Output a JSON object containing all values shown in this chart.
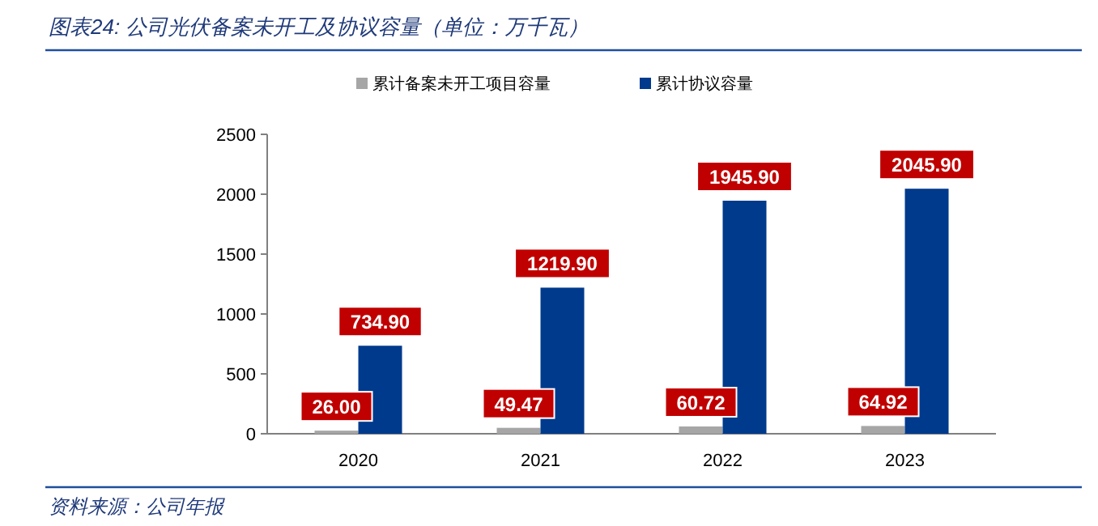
{
  "chart_data": {
    "type": "bar",
    "title": "图表24: 公司光伏备案未开工及协议容量（单位：万千瓦）",
    "categories": [
      "2020",
      "2021",
      "2022",
      "2023"
    ],
    "series": [
      {
        "name": "累计备案未开工项目容量",
        "color": "#a6a6a6",
        "values": [
          26.0,
          49.47,
          60.72,
          64.92
        ],
        "value_labels": [
          "26.00",
          "49.47",
          "60.72",
          "64.92"
        ]
      },
      {
        "name": "累计协议容量",
        "color": "#003a8c",
        "values": [
          734.9,
          1219.9,
          1945.9,
          2045.9
        ],
        "value_labels": [
          "734.90",
          "1219.90",
          "1945.90",
          "2045.90"
        ]
      }
    ],
    "ylim": [
      0,
      2500
    ],
    "yticks": [
      0,
      500,
      1000,
      1500,
      2000,
      2500
    ],
    "legend": "top",
    "annotations": [
      "资料来源：公司年报"
    ]
  }
}
